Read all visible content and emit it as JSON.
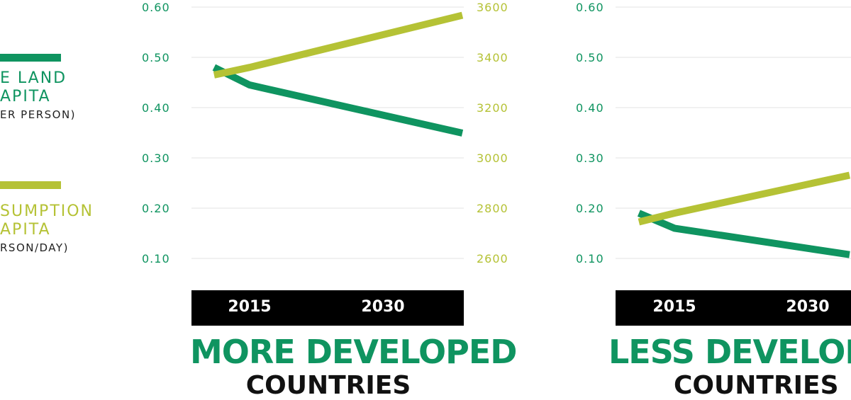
{
  "colors": {
    "land": "#0f9460",
    "calories": "#b5c235",
    "grid": "#e3e3e3",
    "band": "#000000"
  },
  "legend": {
    "land": {
      "title_line1": "E LAND",
      "title_line2": "APITA",
      "unit": "ER PERSON)"
    },
    "calories": {
      "title_line1": "SUMPTION",
      "title_line2": "APITA",
      "unit": "RSON/DAY)"
    }
  },
  "chart_data": [
    {
      "type": "line",
      "title": "MORE DEVELOPED",
      "subtitle": "COUNTRIES",
      "x_ticks": [
        "2015",
        "2030"
      ],
      "y_left": {
        "ticks": [
          "0.60",
          "0.50",
          "0.40",
          "0.30",
          "0.20",
          "0.10"
        ],
        "range": [
          0.1,
          0.6
        ]
      },
      "y_right": {
        "ticks": [
          "3600",
          "3400",
          "3200",
          "3000",
          "2800",
          "2600"
        ],
        "range": [
          2600,
          3600
        ]
      },
      "series": [
        {
          "axis": "left",
          "color_key": "land",
          "points": [
            [
              2011,
              0.48
            ],
            [
              2015,
              0.445
            ],
            [
              2030,
              0.385
            ]
          ]
        },
        {
          "axis": "right",
          "color_key": "calories",
          "points": [
            [
              2011,
              3330
            ],
            [
              2015,
              3360
            ],
            [
              2030,
              3490
            ]
          ]
        }
      ]
    },
    {
      "type": "line",
      "title": "LESS DEVELOP",
      "subtitle": "COUNTRIES",
      "x_ticks": [
        "2015",
        "2030"
      ],
      "y_left": {
        "ticks": [
          "0.60",
          "0.50",
          "0.40",
          "0.30",
          "0.20",
          "0.10"
        ],
        "range": [
          0.1,
          0.6
        ]
      },
      "y_right": {
        "ticks": [],
        "range": [
          2600,
          3600
        ]
      },
      "series": [
        {
          "axis": "left",
          "color_key": "land",
          "points": [
            [
              2011,
              0.19
            ],
            [
              2015,
              0.16
            ],
            [
              2030,
              0.12
            ]
          ]
        },
        {
          "axis": "right",
          "color_key": "calories",
          "points": [
            [
              2011,
              2745
            ],
            [
              2015,
              2780
            ],
            [
              2030,
              2895
            ]
          ]
        }
      ]
    }
  ]
}
